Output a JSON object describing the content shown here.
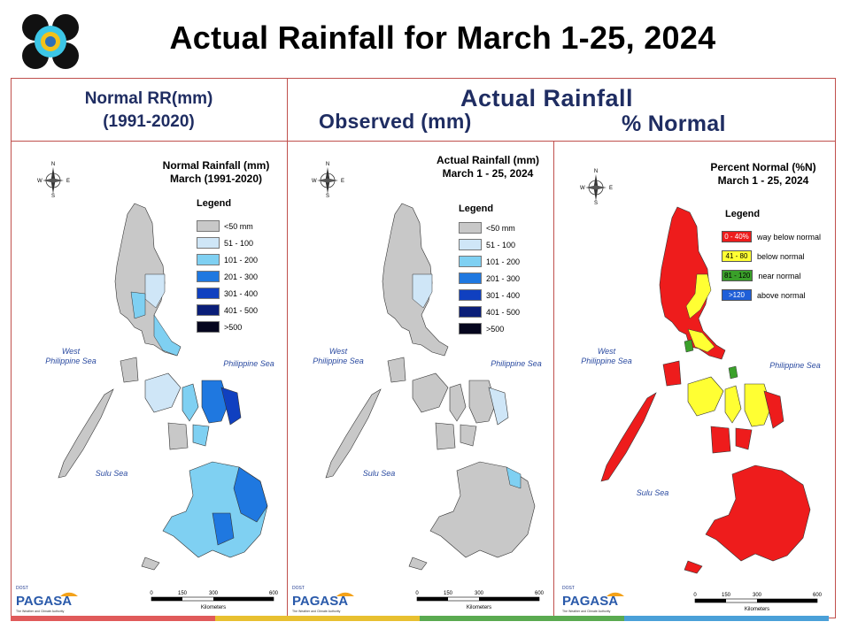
{
  "header": {
    "title": "Actual Rainfall for March 1-25, 2024",
    "left_line1": "Normal RR(mm)",
    "left_line2": "(1991-2020)",
    "right_title": "Actual Rainfall",
    "observed_label": "Observed (mm)",
    "percent_label": "% Normal"
  },
  "panels": [
    {
      "title_line1": "Normal Rainfall (mm)",
      "title_line2": "March (1991-2020)",
      "legend_title": "Legend",
      "legend": [
        {
          "label": "<50 mm",
          "color": "#c8c8c8"
        },
        {
          "label": "51 - 100",
          "color": "#cfe6f7"
        },
        {
          "label": "101 - 200",
          "color": "#7fd0f2"
        },
        {
          "label": "201 - 300",
          "color": "#1f78e0"
        },
        {
          "label": "301 - 400",
          "color": "#1040c0"
        },
        {
          "label": "401 - 500",
          "color": "#0a1e78"
        },
        {
          "label": ">500",
          "color": "#05061e"
        }
      ],
      "sea_west_line1": "West",
      "sea_west_line2": "Philippine Sea",
      "sea_east": "Philippine Sea",
      "sea_south": "Sulu Sea",
      "compass": {
        "n": "N",
        "s": "S",
        "e": "E",
        "w": "W"
      },
      "scale": {
        "ticks": [
          "0",
          "150",
          "300",
          "600"
        ],
        "unit": "Kilometers"
      }
    },
    {
      "title_line1": "Actual Rainfall (mm)",
      "title_line2": "March 1 - 25, 2024",
      "legend_title": "Legend",
      "legend": [
        {
          "label": "<50 mm",
          "color": "#c8c8c8"
        },
        {
          "label": "51 - 100",
          "color": "#cfe6f7"
        },
        {
          "label": "101 - 200",
          "color": "#7fd0f2"
        },
        {
          "label": "201 - 300",
          "color": "#1f78e0"
        },
        {
          "label": "301 - 400",
          "color": "#1040c0"
        },
        {
          "label": "401 - 500",
          "color": "#0a1e78"
        },
        {
          "label": ">500",
          "color": "#05061e"
        }
      ],
      "sea_west_line1": "West",
      "sea_west_line2": "Philippine Sea",
      "sea_east": "Philippine Sea",
      "sea_south": "Sulu Sea",
      "compass": {
        "n": "N",
        "s": "S",
        "e": "E",
        "w": "W"
      },
      "scale": {
        "ticks": [
          "0",
          "150",
          "300",
          "600"
        ],
        "unit": "Kilometers"
      }
    },
    {
      "title_line1": "Percent Normal (%N)",
      "title_line2": "March 1 - 25, 2024",
      "legend_title": "Legend",
      "legend": [
        {
          "range": "0 - 40%",
          "label": "way below normal",
          "color": "#ee1c1c"
        },
        {
          "range": "41 - 80",
          "label": "below normal",
          "color": "#ffff33"
        },
        {
          "range": "81 - 120",
          "label": "near normal",
          "color": "#3aa02a"
        },
        {
          "range": ">120",
          "label": "above normal",
          "color": "#1f5fd8"
        }
      ],
      "sea_west_line1": "West",
      "sea_west_line2": "Philippine Sea",
      "sea_east": "Philippine Sea",
      "sea_south": "Sulu Sea",
      "compass": {
        "n": "N",
        "s": "S",
        "e": "E",
        "w": "W"
      },
      "scale": {
        "ticks": [
          "0",
          "150",
          "300",
          "600"
        ],
        "unit": "Kilometers"
      }
    }
  ],
  "logos": {
    "agency_line1": "DOST",
    "agency_line2": "PAGASA",
    "tagline": "The Weather and Climate Authority"
  },
  "colors": {
    "frame": "#c0504d",
    "heading": "#1f2d62",
    "land_gray": "#c8c8c8",
    "footer": [
      "#e05a5a",
      "#e8c030",
      "#5aaa50",
      "#4aa0d8"
    ]
  }
}
